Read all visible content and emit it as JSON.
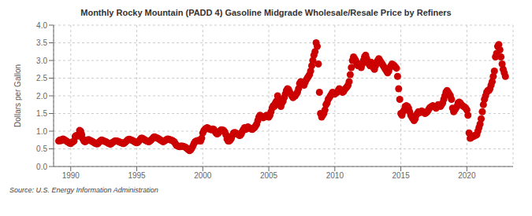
{
  "chart_data": {
    "type": "scatter",
    "title": "Monthly Rocky Mountain (PADD 4) Gasoline Midgrade Wholesale/Resale Price by Refiners",
    "y_label": "Dollars per Gallon",
    "annotations": [
      "Source: U.S. Energy Information Administration"
    ],
    "color": "#cc0000",
    "grid": true,
    "xlim": [
      1988.7,
      2023.5
    ],
    "ylim": [
      0.0,
      4.0
    ],
    "xticks": [
      1990,
      1995,
      2000,
      2005,
      2010,
      2015,
      2020
    ],
    "yticks": [
      {
        "value": 0.0,
        "label": "0.0"
      },
      0.5,
      {
        "value": 1.0,
        "label": "1.0"
      },
      1.5,
      {
        "value": 2.0,
        "label": "2.0"
      },
      2.5,
      {
        "value": 3.0,
        "label": "3.0"
      },
      3.5,
      {
        "value": 4.0,
        "label": "4.0"
      }
    ],
    "x": [
      1989.083,
      1989.167,
      1989.25,
      1989.333,
      1989.417,
      1989.5,
      1989.583,
      1989.667,
      1989.75,
      1989.833,
      1989.917,
      1990.0,
      1990.083,
      1990.167,
      1990.25,
      1990.333,
      1990.417,
      1990.5,
      1990.583,
      1990.667,
      1990.75,
      1990.833,
      1990.917,
      1991.0,
      1991.083,
      1991.167,
      1991.25,
      1991.333,
      1991.417,
      1991.5,
      1991.583,
      1991.667,
      1991.75,
      1991.833,
      1991.917,
      1992.0,
      1992.083,
      1992.167,
      1992.25,
      1992.333,
      1992.417,
      1992.5,
      1992.583,
      1992.667,
      1992.75,
      1992.833,
      1992.917,
      1993.0,
      1993.083,
      1993.167,
      1993.25,
      1993.333,
      1993.417,
      1993.5,
      1993.583,
      1993.667,
      1993.75,
      1993.833,
      1993.917,
      1994.0,
      1994.083,
      1994.167,
      1994.25,
      1994.333,
      1994.417,
      1994.5,
      1994.583,
      1994.667,
      1994.75,
      1994.833,
      1994.917,
      1995.0,
      1995.083,
      1995.167,
      1995.25,
      1995.333,
      1995.417,
      1995.5,
      1995.583,
      1995.667,
      1995.75,
      1995.833,
      1995.917,
      1996.0,
      1996.083,
      1996.167,
      1996.25,
      1996.333,
      1996.417,
      1996.5,
      1996.583,
      1996.667,
      1996.75,
      1996.833,
      1996.917,
      1997.0,
      1997.083,
      1997.167,
      1997.25,
      1997.333,
      1997.417,
      1997.5,
      1997.583,
      1997.667,
      1997.75,
      1997.833,
      1997.917,
      1998.0,
      1998.083,
      1998.167,
      1998.25,
      1998.333,
      1998.417,
      1998.5,
      1998.583,
      1998.667,
      1998.75,
      1998.833,
      1998.917,
      1999.0,
      1999.083,
      1999.167,
      1999.25,
      1999.333,
      1999.417,
      1999.5,
      1999.583,
      1999.667,
      1999.75,
      1999.833,
      1999.917,
      2000.0,
      2000.083,
      2000.167,
      2000.25,
      2000.333,
      2000.417,
      2000.5,
      2000.583,
      2000.667,
      2000.75,
      2000.833,
      2000.917,
      2001.0,
      2001.083,
      2001.167,
      2001.25,
      2001.333,
      2001.417,
      2001.5,
      2001.583,
      2001.667,
      2001.75,
      2001.833,
      2001.917,
      2002.0,
      2002.083,
      2002.167,
      2002.25,
      2002.333,
      2002.417,
      2002.5,
      2002.583,
      2002.667,
      2002.75,
      2002.833,
      2002.917,
      2003.0,
      2003.083,
      2003.167,
      2003.25,
      2003.333,
      2003.417,
      2003.5,
      2003.583,
      2003.667,
      2003.75,
      2003.833,
      2003.917,
      2004.0,
      2004.083,
      2004.167,
      2004.25,
      2004.333,
      2004.417,
      2004.5,
      2004.583,
      2004.667,
      2004.75,
      2004.833,
      2004.917,
      2005.0,
      2005.083,
      2005.167,
      2005.25,
      2005.333,
      2005.417,
      2005.5,
      2005.583,
      2005.667,
      2005.75,
      2005.833,
      2005.917,
      2006.0,
      2006.083,
      2006.167,
      2006.25,
      2006.333,
      2006.417,
      2006.5,
      2006.583,
      2006.667,
      2006.75,
      2006.833,
      2006.917,
      2007.0,
      2007.083,
      2007.167,
      2007.25,
      2007.333,
      2007.417,
      2007.5,
      2007.583,
      2007.667,
      2007.75,
      2007.833,
      2007.917,
      2008.0,
      2008.083,
      2008.167,
      2008.25,
      2008.333,
      2008.417,
      2008.5,
      2008.583,
      2008.667,
      2008.75,
      2008.833,
      2008.917,
      2009.0,
      2009.083,
      2009.167,
      2009.25,
      2009.333,
      2009.417,
      2009.5,
      2009.583,
      2009.667,
      2009.75,
      2009.833,
      2009.917,
      2010.0,
      2010.083,
      2010.167,
      2010.25,
      2010.333,
      2010.417,
      2010.5,
      2010.583,
      2010.667,
      2010.75,
      2010.833,
      2010.917,
      2011.0,
      2011.083,
      2011.167,
      2011.25,
      2011.333,
      2011.417,
      2011.5,
      2011.583,
      2011.667,
      2011.75,
      2011.833,
      2011.917,
      2012.0,
      2012.083,
      2012.167,
      2012.25,
      2012.333,
      2012.417,
      2012.5,
      2012.583,
      2012.667,
      2012.75,
      2012.833,
      2012.917,
      2013.0,
      2013.083,
      2013.167,
      2013.25,
      2013.333,
      2013.417,
      2013.5,
      2013.583,
      2013.667,
      2013.75,
      2013.833,
      2013.917,
      2014.0,
      2014.083,
      2014.167,
      2014.25,
      2014.333,
      2014.417,
      2014.5,
      2014.583,
      2014.667,
      2014.75,
      2014.833,
      2014.917,
      2015.0,
      2015.083,
      2015.167,
      2015.25,
      2015.333,
      2015.417,
      2015.5,
      2015.583,
      2015.667,
      2015.75,
      2015.833,
      2015.917,
      2016.0,
      2016.083,
      2016.167,
      2016.25,
      2016.333,
      2016.417,
      2016.5,
      2016.583,
      2016.667,
      2016.75,
      2016.833,
      2016.917,
      2017.0,
      2017.083,
      2017.167,
      2017.25,
      2017.333,
      2017.417,
      2017.5,
      2017.583,
      2017.667,
      2017.75,
      2017.833,
      2017.917,
      2018.0,
      2018.083,
      2018.167,
      2018.25,
      2018.333,
      2018.417,
      2018.5,
      2018.583,
      2018.667,
      2018.75,
      2018.833,
      2018.917,
      2019.0,
      2019.083,
      2019.167,
      2019.25,
      2019.333,
      2019.417,
      2019.5,
      2019.583,
      2019.667,
      2019.75,
      2019.833,
      2019.917,
      2020.0,
      2020.083,
      2020.167,
      2020.25,
      2020.333,
      2020.417,
      2020.5,
      2020.583,
      2020.667,
      2020.75,
      2020.833,
      2020.917,
      2021.0,
      2021.083,
      2021.167,
      2021.25,
      2021.333,
      2021.417,
      2021.5,
      2021.583,
      2021.667,
      2021.75,
      2021.833,
      2021.917,
      2022.0,
      2022.083,
      2022.167,
      2022.25,
      2022.333,
      2022.417,
      2022.5,
      2022.583,
      2022.667,
      2022.75,
      2022.833,
      2022.917
    ],
    "values": [
      0.72,
      0.75,
      0.73,
      0.76,
      0.78,
      0.76,
      0.74,
      0.72,
      0.7,
      0.68,
      0.66,
      0.65,
      0.68,
      0.7,
      0.72,
      0.85,
      0.88,
      0.87,
      0.86,
      1.02,
      1.0,
      0.9,
      0.78,
      0.72,
      0.7,
      0.72,
      0.74,
      0.76,
      0.75,
      0.73,
      0.72,
      0.7,
      0.68,
      0.66,
      0.65,
      0.64,
      0.66,
      0.7,
      0.73,
      0.75,
      0.74,
      0.72,
      0.71,
      0.7,
      0.68,
      0.66,
      0.65,
      0.63,
      0.65,
      0.68,
      0.7,
      0.72,
      0.73,
      0.72,
      0.71,
      0.7,
      0.68,
      0.67,
      0.66,
      0.65,
      0.67,
      0.7,
      0.73,
      0.76,
      0.77,
      0.76,
      0.75,
      0.74,
      0.72,
      0.7,
      0.68,
      0.67,
      0.69,
      0.72,
      0.76,
      0.8,
      0.8,
      0.78,
      0.76,
      0.74,
      0.72,
      0.71,
      0.7,
      0.72,
      0.75,
      0.78,
      0.82,
      0.84,
      0.83,
      0.81,
      0.8,
      0.78,
      0.76,
      0.74,
      0.72,
      0.7,
      0.72,
      0.74,
      0.76,
      0.78,
      0.77,
      0.76,
      0.75,
      0.74,
      0.72,
      0.7,
      0.65,
      0.6,
      0.58,
      0.57,
      0.56,
      0.58,
      0.58,
      0.57,
      0.56,
      0.55,
      0.53,
      0.5,
      0.47,
      0.45,
      0.47,
      0.52,
      0.58,
      0.65,
      0.7,
      0.72,
      0.73,
      0.74,
      0.73,
      0.72,
      0.8,
      0.95,
      1.02,
      1.05,
      1.08,
      1.1,
      1.08,
      1.06,
      1.05,
      1.04,
      1.06,
      1.05,
      1.0,
      0.95,
      0.92,
      0.94,
      0.98,
      1.02,
      1.04,
      1.03,
      1.02,
      0.98,
      0.9,
      0.78,
      0.72,
      0.72,
      0.75,
      0.8,
      0.88,
      0.95,
      0.96,
      0.95,
      0.93,
      0.92,
      0.88,
      0.88,
      0.92,
      1.0,
      1.05,
      1.1,
      1.05,
      1.08,
      1.12,
      1.1,
      1.08,
      1.06,
      1.05,
      1.08,
      1.1,
      1.15,
      1.2,
      1.3,
      1.4,
      1.45,
      1.42,
      1.4,
      1.38,
      1.4,
      1.42,
      1.45,
      1.42,
      1.4,
      1.45,
      1.55,
      1.65,
      1.72,
      1.7,
      1.8,
      1.85,
      2.0,
      1.9,
      1.75,
      1.7,
      1.8,
      1.85,
      1.95,
      2.05,
      2.15,
      2.2,
      2.18,
      2.1,
      2.05,
      2.0,
      1.95,
      1.98,
      2.0,
      2.05,
      2.1,
      2.2,
      2.35,
      2.4,
      2.38,
      2.35,
      2.3,
      2.38,
      2.45,
      2.5,
      2.55,
      2.6,
      2.7,
      2.85,
      3.0,
      3.15,
      3.25,
      3.5,
      3.4,
      2.9,
      2.1,
      1.5,
      1.4,
      1.45,
      1.5,
      1.6,
      1.75,
      1.8,
      1.9,
      1.95,
      2.0,
      2.05,
      2.1,
      2.08,
      2.05,
      2.08,
      2.1,
      2.15,
      2.2,
      2.18,
      2.15,
      2.1,
      2.12,
      2.18,
      2.22,
      2.25,
      2.3,
      2.4,
      2.6,
      2.8,
      3.0,
      3.1,
      3.05,
      3.0,
      2.9,
      2.85,
      2.9,
      2.85,
      2.8,
      2.9,
      3.0,
      3.1,
      3.15,
      3.05,
      2.95,
      2.9,
      2.85,
      2.95,
      2.9,
      2.8,
      2.75,
      2.85,
      2.95,
      3.0,
      3.05,
      3.0,
      2.95,
      2.9,
      2.85,
      2.8,
      2.75,
      2.7,
      2.65,
      2.7,
      2.8,
      2.85,
      2.9,
      2.88,
      2.85,
      2.82,
      2.78,
      2.55,
      2.2,
      1.9,
      1.5,
      1.45,
      1.55,
      1.6,
      1.7,
      1.72,
      1.7,
      1.65,
      1.55,
      1.45,
      1.4,
      1.35,
      1.3,
      1.35,
      1.45,
      1.5,
      1.55,
      1.52,
      1.55,
      1.57,
      1.55,
      1.52,
      1.5,
      1.52,
      1.55,
      1.6,
      1.65,
      1.68,
      1.7,
      1.72,
      1.7,
      1.68,
      1.65,
      1.7,
      1.75,
      1.72,
      1.7,
      1.75,
      1.8,
      1.9,
      2.0,
      2.1,
      2.15,
      2.1,
      2.05,
      2.0,
      1.9,
      1.65,
      1.55,
      1.6,
      1.65,
      1.7,
      1.8,
      1.82,
      1.8,
      1.75,
      1.72,
      1.7,
      1.68,
      1.65,
      1.6,
      1.45,
      0.95,
      0.8,
      0.82,
      0.85,
      0.85,
      0.88,
      0.88,
      0.9,
      1.0,
      1.1,
      1.2,
      1.35,
      1.55,
      1.75,
      1.9,
      2.0,
      2.1,
      2.15,
      2.15,
      2.2,
      2.3,
      2.4,
      2.55,
      2.7,
      3.1,
      3.2,
      3.4,
      3.45,
      3.3,
      3.1,
      2.9,
      2.75,
      2.65,
      2.55
    ]
  }
}
